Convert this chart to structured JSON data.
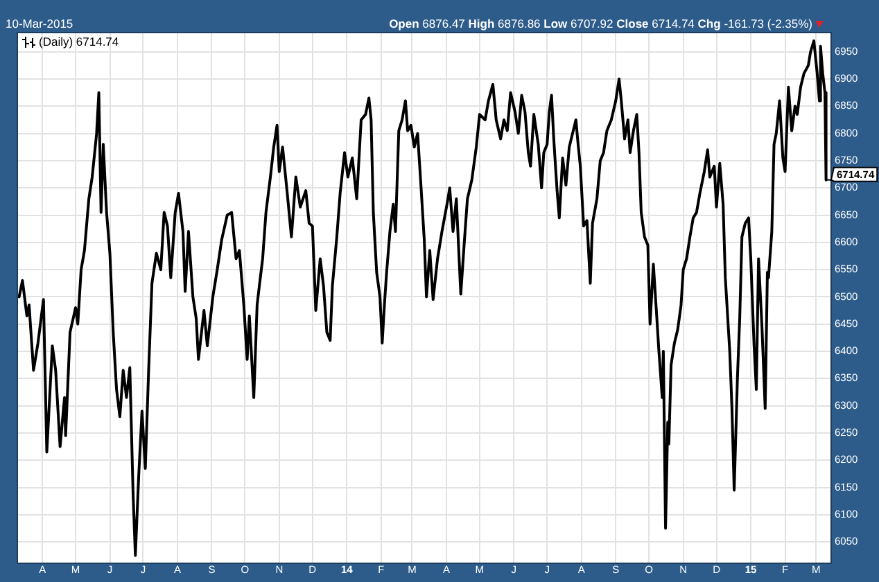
{
  "chart_data": {
    "type": "line",
    "subtitle": "10-Mar-2015",
    "annotations": [
      "Open 6876.47 High 6876.86 Low 6707.92 Close 6714.74 Chg -161.73 (-2.35%)",
      {
        "text": "6714.74",
        "x": "2015-03-10",
        "y": 6714.74
      }
    ],
    "x": [
      "2013-03-11",
      "2013-03-14",
      "2013-03-18",
      "2013-03-20",
      "2013-03-24",
      "2013-03-28",
      "2013-04-02",
      "2013-04-05",
      "2013-04-10",
      "2013-04-13",
      "2013-04-17",
      "2013-04-21",
      "2013-04-22",
      "2013-04-26",
      "2013-05-01",
      "2013-05-03",
      "2013-05-06",
      "2013-05-09",
      "2013-05-13",
      "2013-05-16",
      "2013-05-20",
      "2013-05-22",
      "2013-05-24",
      "2013-05-26",
      "2013-05-29",
      "2013-06-01",
      "2013-06-04",
      "2013-06-07",
      "2013-06-10",
      "2013-06-13",
      "2013-06-16",
      "2013-06-19",
      "2013-06-22",
      "2013-06-24",
      "2013-06-27",
      "2013-06-30",
      "2013-07-03",
      "2013-07-06",
      "2013-07-09",
      "2013-07-13",
      "2013-07-17",
      "2013-07-20",
      "2013-07-23",
      "2013-07-26",
      "2013-07-30",
      "2013-08-02",
      "2013-08-06",
      "2013-08-08",
      "2013-08-11",
      "2013-08-15",
      "2013-08-18",
      "2013-08-20",
      "2013-08-25",
      "2013-08-28",
      "2013-09-02",
      "2013-09-06",
      "2013-09-10",
      "2013-09-15",
      "2013-09-19",
      "2013-09-23",
      "2013-09-26",
      "2013-09-30",
      "2013-10-03",
      "2013-10-05",
      "2013-10-09",
      "2013-10-12",
      "2013-10-14",
      "2013-10-17",
      "2013-10-20",
      "2013-10-24",
      "2013-10-27",
      "2013-10-30",
      "2013-11-01",
      "2013-11-04",
      "2013-11-08",
      "2013-11-12",
      "2013-11-16",
      "2013-11-20",
      "2013-11-25",
      "2013-11-28",
      "2013-12-01",
      "2013-12-04",
      "2013-12-08",
      "2013-12-11",
      "2013-12-14",
      "2013-12-17",
      "2013-12-19",
      "2013-12-23",
      "2013-12-26",
      "2013-12-30",
      "2014-01-02",
      "2014-01-06",
      "2014-01-10",
      "2014-01-14",
      "2014-01-18",
      "2014-01-21",
      "2014-01-23",
      "2014-01-25",
      "2014-01-28",
      "2014-01-31",
      "2014-02-02",
      "2014-02-04",
      "2014-02-06",
      "2014-02-09",
      "2014-02-12",
      "2014-02-14",
      "2014-02-17",
      "2014-02-20",
      "2014-02-23",
      "2014-02-25",
      "2014-02-28",
      "2014-03-03",
      "2014-03-06",
      "2014-03-09",
      "2014-03-12",
      "2014-03-14",
      "2014-03-17",
      "2014-03-20",
      "2014-03-24",
      "2014-03-28",
      "2014-04-02",
      "2014-04-04",
      "2014-04-07",
      "2014-04-10",
      "2014-04-14",
      "2014-04-17",
      "2014-04-20",
      "2014-04-24",
      "2014-04-28",
      "2014-05-01",
      "2014-05-06",
      "2014-05-09",
      "2014-05-13",
      "2014-05-16",
      "2014-05-20",
      "2014-05-23",
      "2014-05-26",
      "2014-05-29",
      "2014-06-02",
      "2014-06-05",
      "2014-06-08",
      "2014-06-11",
      "2014-06-14",
      "2014-06-16",
      "2014-06-19",
      "2014-06-23",
      "2014-06-26",
      "2014-06-28",
      "2014-07-01",
      "2014-07-03",
      "2014-07-05",
      "2014-07-07",
      "2014-07-10",
      "2014-07-12",
      "2014-07-15",
      "2014-07-18",
      "2014-07-21",
      "2014-07-24",
      "2014-07-27",
      "2014-07-29",
      "2014-07-31",
      "2014-08-03",
      "2014-08-06",
      "2014-08-09",
      "2014-08-11",
      "2014-08-15",
      "2014-08-18",
      "2014-08-21",
      "2014-08-24",
      "2014-08-28",
      "2014-09-01",
      "2014-09-04",
      "2014-09-06",
      "2014-09-09",
      "2014-09-12",
      "2014-09-14",
      "2014-09-17",
      "2014-09-20",
      "2014-09-22",
      "2014-09-24",
      "2014-09-27",
      "2014-09-30",
      "2014-10-02",
      "2014-10-05",
      "2014-10-08",
      "2014-10-10",
      "2014-10-13",
      "2014-10-14",
      "2014-10-16",
      "2014-10-18",
      "2014-10-19",
      "2014-10-21",
      "2014-10-24",
      "2014-10-27",
      "2014-10-30",
      "2014-11-01",
      "2014-11-04",
      "2014-11-07",
      "2014-11-10",
      "2014-11-13",
      "2014-11-16",
      "2014-11-20",
      "2014-11-23",
      "2014-11-25",
      "2014-11-29",
      "2014-12-01",
      "2014-12-04",
      "2014-12-07",
      "2014-12-09",
      "2014-12-13",
      "2014-12-15",
      "2014-12-17",
      "2014-12-20",
      "2014-12-22",
      "2014-12-24",
      "2014-12-27",
      "2014-12-30",
      "2015-01-01",
      "2015-01-04",
      "2015-01-06",
      "2015-01-08",
      "2015-01-11",
      "2015-01-14",
      "2015-01-16",
      "2015-01-17",
      "2015-01-20",
      "2015-01-22",
      "2015-01-24",
      "2015-01-27",
      "2015-01-30",
      "2015-02-01",
      "2015-02-04",
      "2015-02-07",
      "2015-02-10",
      "2015-02-12",
      "2015-02-15",
      "2015-02-18",
      "2015-02-22",
      "2015-02-24",
      "2015-02-27",
      "2015-03-02",
      "2015-03-04",
      "2015-03-05",
      "2015-03-07",
      "2015-03-09",
      "2015-03-10"
    ],
    "series": [
      {
        "name": "(Daily) 6714.74",
        "color": "#000000",
        "values": [
          6500,
          6530,
          6465,
          6485,
          6365,
          6415,
          6495,
          6215,
          6410,
          6365,
          6225,
          6315,
          6245,
          6435,
          6480,
          6450,
          6550,
          6585,
          6680,
          6720,
          6800,
          6875,
          6655,
          6780,
          6655,
          6580,
          6435,
          6330,
          6280,
          6365,
          6315,
          6370,
          6135,
          6025,
          6170,
          6290,
          6185,
          6365,
          6525,
          6580,
          6550,
          6655,
          6630,
          6535,
          6655,
          6690,
          6620,
          6510,
          6620,
          6500,
          6460,
          6385,
          6475,
          6410,
          6500,
          6550,
          6605,
          6650,
          6655,
          6570,
          6585,
          6485,
          6385,
          6465,
          6315,
          6485,
          6520,
          6570,
          6655,
          6720,
          6775,
          6815,
          6730,
          6775,
          6695,
          6610,
          6720,
          6665,
          6695,
          6635,
          6630,
          6475,
          6570,
          6520,
          6435,
          6420,
          6520,
          6610,
          6690,
          6765,
          6720,
          6755,
          6680,
          6825,
          6835,
          6865,
          6825,
          6655,
          6545,
          6500,
          6415,
          6485,
          6545,
          6620,
          6670,
          6620,
          6805,
          6825,
          6860,
          6805,
          6815,
          6775,
          6800,
          6705,
          6605,
          6500,
          6585,
          6495,
          6570,
          6620,
          6675,
          6700,
          6620,
          6680,
          6505,
          6595,
          6680,
          6715,
          6775,
          6835,
          6825,
          6860,
          6890,
          6825,
          6790,
          6825,
          6805,
          6875,
          6840,
          6800,
          6870,
          6840,
          6765,
          6740,
          6835,
          6780,
          6700,
          6765,
          6780,
          6840,
          6870,
          6790,
          6695,
          6645,
          6755,
          6705,
          6775,
          6800,
          6825,
          6780,
          6740,
          6630,
          6640,
          6525,
          6635,
          6680,
          6750,
          6765,
          6805,
          6825,
          6860,
          6900,
          6860,
          6790,
          6825,
          6765,
          6805,
          6835,
          6765,
          6655,
          6610,
          6595,
          6450,
          6560,
          6465,
          6400,
          6315,
          6400,
          6075,
          6270,
          6230,
          6375,
          6415,
          6440,
          6485,
          6550,
          6570,
          6610,
          6645,
          6655,
          6690,
          6730,
          6770,
          6720,
          6740,
          6665,
          6745,
          6670,
          6535,
          6400,
          6295,
          6145,
          6355,
          6460,
          6610,
          6635,
          6645,
          6570,
          6410,
          6330,
          6570,
          6450,
          6295,
          6545,
          6535,
          6620,
          6780,
          6800,
          6860,
          6755,
          6730,
          6885,
          6805,
          6850,
          6835,
          6885,
          6910,
          6925,
          6950,
          6970,
          6910,
          6860,
          6960,
          6910,
          6875,
          6714.74
        ]
      }
    ],
    "xlim": [
      "2013-03-10",
      "2015-03-14"
    ],
    "xticks": [
      {
        "value": "2013-04-01",
        "label": "A"
      },
      {
        "value": "2013-05-01",
        "label": "M"
      },
      {
        "value": "2013-06-01",
        "label": "J"
      },
      {
        "value": "2013-07-01",
        "label": "J"
      },
      {
        "value": "2013-08-01",
        "label": "A"
      },
      {
        "value": "2013-09-01",
        "label": "S"
      },
      {
        "value": "2013-10-01",
        "label": "O"
      },
      {
        "value": "2013-11-01",
        "label": "N"
      },
      {
        "value": "2013-12-01",
        "label": "D"
      },
      {
        "value": "2014-01-01",
        "label": "14"
      },
      {
        "value": "2014-02-01",
        "label": "F"
      },
      {
        "value": "2014-03-01",
        "label": "M"
      },
      {
        "value": "2014-04-01",
        "label": "A"
      },
      {
        "value": "2014-05-01",
        "label": "M"
      },
      {
        "value": "2014-06-01",
        "label": "J"
      },
      {
        "value": "2014-07-01",
        "label": "J"
      },
      {
        "value": "2014-08-01",
        "label": "A"
      },
      {
        "value": "2014-09-01",
        "label": "S"
      },
      {
        "value": "2014-10-01",
        "label": "O"
      },
      {
        "value": "2014-11-01",
        "label": "N"
      },
      {
        "value": "2014-12-01",
        "label": "D"
      },
      {
        "value": "2015-01-01",
        "label": "15"
      },
      {
        "value": "2015-02-01",
        "label": "F"
      },
      {
        "value": "2015-03-01",
        "label": "M"
      }
    ],
    "ylim": [
      6012,
      6984
    ],
    "yticks": [
      6050,
      6100,
      6150,
      6200,
      6250,
      6300,
      6350,
      6400,
      6450,
      6500,
      6550,
      6600,
      6650,
      6700,
      6750,
      6800,
      6850,
      6900,
      6950
    ],
    "grid": true,
    "legend": "top left",
    "marker": "none",
    "line_style": "solid"
  }
}
